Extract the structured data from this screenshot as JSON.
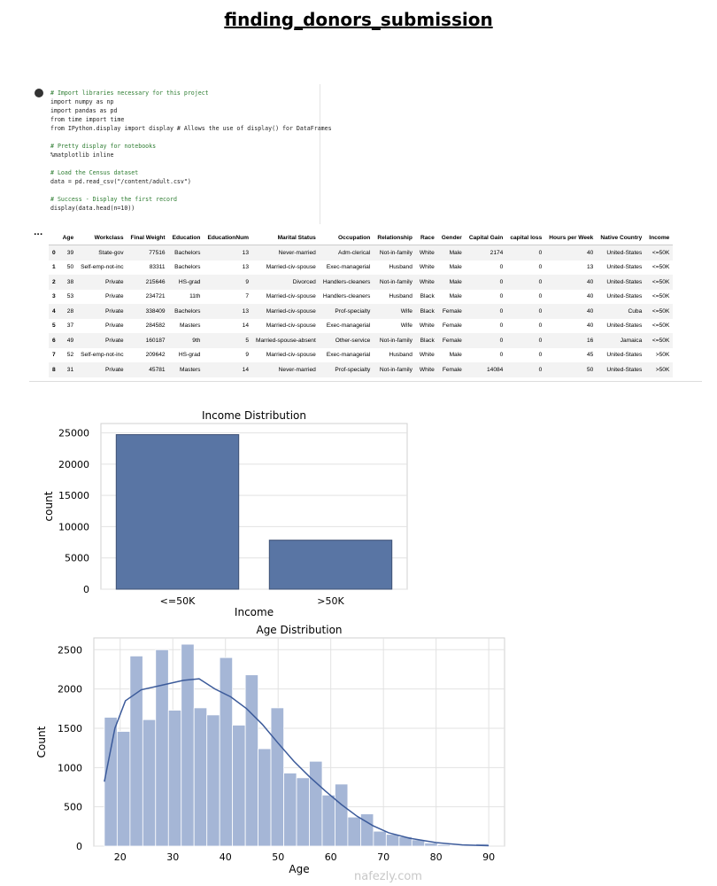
{
  "header": {
    "title": "finding_donors_submission"
  },
  "code": [
    [
      "# Import libraries necessary for this project",
      "import numpy as np",
      "import pandas as pd",
      "from time import time",
      "from IPython.display import display # Allows the use of display() for DataFrames"
    ],
    [
      "# Pretty display for notebooks",
      "%matplotlib inline"
    ],
    [
      "# Load the Census dataset",
      "data = pd.read_csv(\"/content/adult.csv\")"
    ],
    [
      "# Success - Display the first record",
      "display(data.head(n=10))"
    ]
  ],
  "output_marker": "...",
  "table": {
    "columns": [
      "Age",
      "Workclass",
      "Final Weight",
      "Education",
      "EducationNum",
      "Marital Status",
      "Occupation",
      "Relationship",
      "Race",
      "Gender",
      "Capital Gain",
      "capital loss",
      "Hours per Week",
      "Native Country",
      "Income"
    ],
    "rows": [
      [
        0,
        39,
        "State-gov",
        77516,
        "Bachelors",
        13,
        "Never-married",
        "Adm-clerical",
        "Not-in-family",
        "White",
        "Male",
        2174,
        0,
        40,
        "United-States",
        "<=50K"
      ],
      [
        1,
        50,
        "Self-emp-not-inc",
        83311,
        "Bachelors",
        13,
        "Married-civ-spouse",
        "Exec-managerial",
        "Husband",
        "White",
        "Male",
        0,
        0,
        13,
        "United-States",
        "<=50K"
      ],
      [
        2,
        38,
        "Private",
        215646,
        "HS-grad",
        9,
        "Divorced",
        "Handlers-cleaners",
        "Not-in-family",
        "White",
        "Male",
        0,
        0,
        40,
        "United-States",
        "<=50K"
      ],
      [
        3,
        53,
        "Private",
        234721,
        "11th",
        7,
        "Married-civ-spouse",
        "Handlers-cleaners",
        "Husband",
        "Black",
        "Male",
        0,
        0,
        40,
        "United-States",
        "<=50K"
      ],
      [
        4,
        28,
        "Private",
        338409,
        "Bachelors",
        13,
        "Married-civ-spouse",
        "Prof-specialty",
        "Wife",
        "Black",
        "Female",
        0,
        0,
        40,
        "Cuba",
        "<=50K"
      ],
      [
        5,
        37,
        "Private",
        284582,
        "Masters",
        14,
        "Married-civ-spouse",
        "Exec-managerial",
        "Wife",
        "White",
        "Female",
        0,
        0,
        40,
        "United-States",
        "<=50K"
      ],
      [
        6,
        49,
        "Private",
        160187,
        "9th",
        5,
        "Married-spouse-absent",
        "Other-service",
        "Not-in-family",
        "Black",
        "Female",
        0,
        0,
        16,
        "Jamaica",
        "<=50K"
      ],
      [
        7,
        52,
        "Self-emp-not-inc",
        209642,
        "HS-grad",
        9,
        "Married-civ-spouse",
        "Exec-managerial",
        "Husband",
        "White",
        "Male",
        0,
        0,
        45,
        "United-States",
        ">50K"
      ],
      [
        8,
        31,
        "Private",
        45781,
        "Masters",
        14,
        "Never-married",
        "Prof-specialty",
        "Not-in-family",
        "White",
        "Female",
        14084,
        0,
        50,
        "United-States",
        ">50K"
      ]
    ]
  },
  "chart_data": [
    {
      "type": "bar",
      "title": "Income Distribution",
      "x_label": "Income",
      "y_label": "count",
      "categories": [
        "<=50K",
        ">50K"
      ],
      "values": [
        24720,
        7841
      ],
      "color": "#5975a4",
      "ylim": [
        0,
        26500
      ],
      "yticks": [
        0,
        5000,
        10000,
        15000,
        20000,
        25000
      ],
      "grid": true
    },
    {
      "type": "histogram",
      "title": "Age Distribution",
      "x_label": "Age",
      "y_label": "Count",
      "bins": [
        17,
        19.43,
        21.87,
        24.3,
        26.73,
        29.17,
        31.6,
        34.03,
        36.47,
        38.9,
        41.33,
        43.77,
        46.2,
        48.63,
        51.07,
        53.5,
        55.93,
        58.37,
        60.8,
        63.23,
        65.67,
        68.1,
        70.53,
        72.97,
        75.4,
        77.83,
        80.27,
        82.7,
        85.13,
        87.57,
        90
      ],
      "values": [
        1640,
        1460,
        2420,
        1610,
        2500,
        1730,
        2570,
        1760,
        1670,
        2400,
        1540,
        2180,
        1240,
        1760,
        930,
        870,
        1080,
        650,
        790,
        370,
        410,
        190,
        150,
        120,
        80,
        40,
        20,
        10,
        10,
        30
      ],
      "color": "#a5b6d6",
      "kde": {
        "color": "#3b5a9a",
        "x": [
          17,
          19,
          21,
          24,
          28,
          32,
          35,
          38,
          41,
          44,
          47,
          50,
          53,
          56,
          59,
          62,
          65,
          68,
          71,
          75,
          80,
          85,
          90
        ],
        "y": [
          820,
          1500,
          1850,
          1990,
          2050,
          2110,
          2130,
          2000,
          1900,
          1750,
          1550,
          1310,
          1080,
          880,
          700,
          530,
          380,
          260,
          170,
          100,
          45,
          15,
          5
        ]
      },
      "xlim": [
        15,
        93
      ],
      "ylim": [
        0,
        2650
      ],
      "xticks": [
        20,
        30,
        40,
        50,
        60,
        70,
        80,
        90
      ],
      "yticks": [
        0,
        500,
        1000,
        1500,
        2000,
        2500
      ],
      "grid": true
    }
  ],
  "watermark": "nafezly.com"
}
